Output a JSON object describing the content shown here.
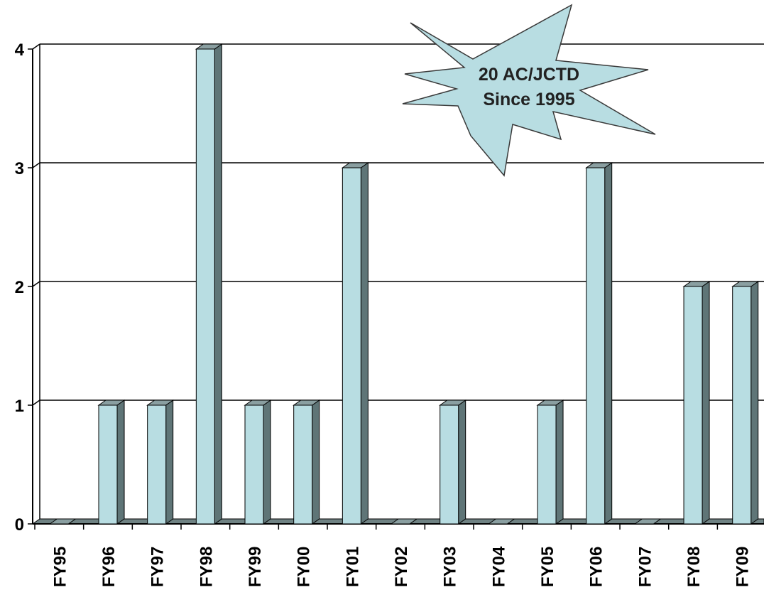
{
  "chart_data": {
    "type": "bar",
    "title": "",
    "xlabel": "",
    "ylabel": "",
    "categories": [
      "FY95",
      "FY96",
      "FY97",
      "FY98",
      "FY99",
      "FY00",
      "FY01",
      "FY02",
      "FY03",
      "FY04",
      "FY05",
      "FY06",
      "FY07",
      "FY08",
      "FY09"
    ],
    "values": [
      0,
      1,
      1,
      4,
      1,
      1,
      3,
      0,
      1,
      0,
      1,
      3,
      0,
      2,
      2
    ],
    "ylim": [
      0,
      4
    ],
    "yticks": [
      0,
      1,
      2,
      3,
      4
    ],
    "grid": true,
    "style": "3d-column",
    "colors": {
      "bar_face": "#b8dde2",
      "bar_side": "#5f7577",
      "bar_top": "#8a9fa1",
      "floor": "#6f8283"
    }
  },
  "callout": {
    "line1": "20 AC/JCTD",
    "line2": "Since 1995",
    "fill": "#b8dde2"
  }
}
